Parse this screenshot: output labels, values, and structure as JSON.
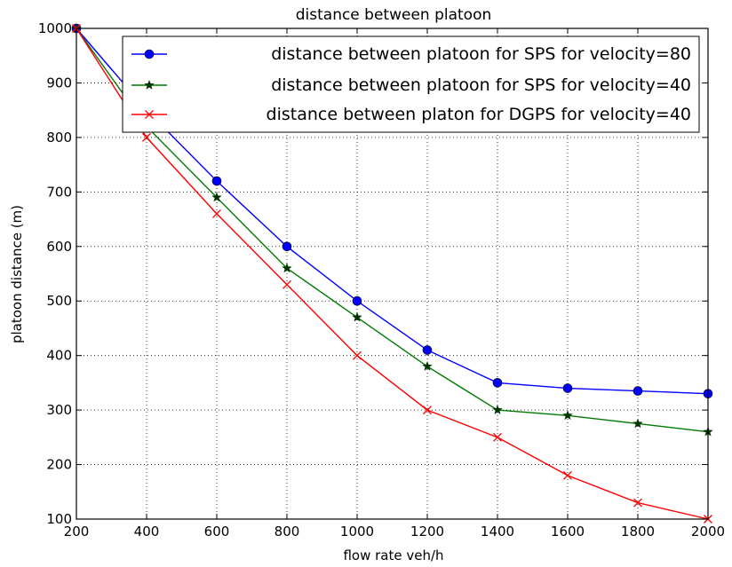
{
  "chart_data": {
    "type": "line",
    "title": "distance between platoon",
    "xlabel": "flow rate veh/h",
    "ylabel": "platoon distance (m)",
    "xlim": [
      200,
      2000
    ],
    "ylim": [
      100,
      1000
    ],
    "xticks": [
      200,
      400,
      600,
      800,
      1000,
      1200,
      1400,
      1600,
      1800,
      2000
    ],
    "yticks": [
      100,
      200,
      300,
      400,
      500,
      600,
      700,
      800,
      900,
      1000
    ],
    "grid": true,
    "legend_position": "top-right",
    "x": [
      200,
      400,
      600,
      800,
      1000,
      1200,
      1400,
      1600,
      1800,
      2000
    ],
    "series": [
      {
        "name": "distance between platoon for SPS for velocity=80",
        "color": "#0000ff",
        "marker": "circle",
        "values": [
          1000,
          850,
          720,
          600,
          500,
          410,
          350,
          340,
          335,
          330
        ]
      },
      {
        "name": "distance between platoon for SPS for velocity=40",
        "color": "#007a00",
        "marker": "star",
        "values": [
          1000,
          820,
          690,
          560,
          470,
          380,
          300,
          290,
          275,
          260
        ]
      },
      {
        "name": "distance between platon for DGPS for velocity=40",
        "color": "#ff0000",
        "marker": "x",
        "values": [
          1000,
          800,
          660,
          530,
          400,
          300,
          250,
          180,
          130,
          100
        ]
      }
    ]
  }
}
